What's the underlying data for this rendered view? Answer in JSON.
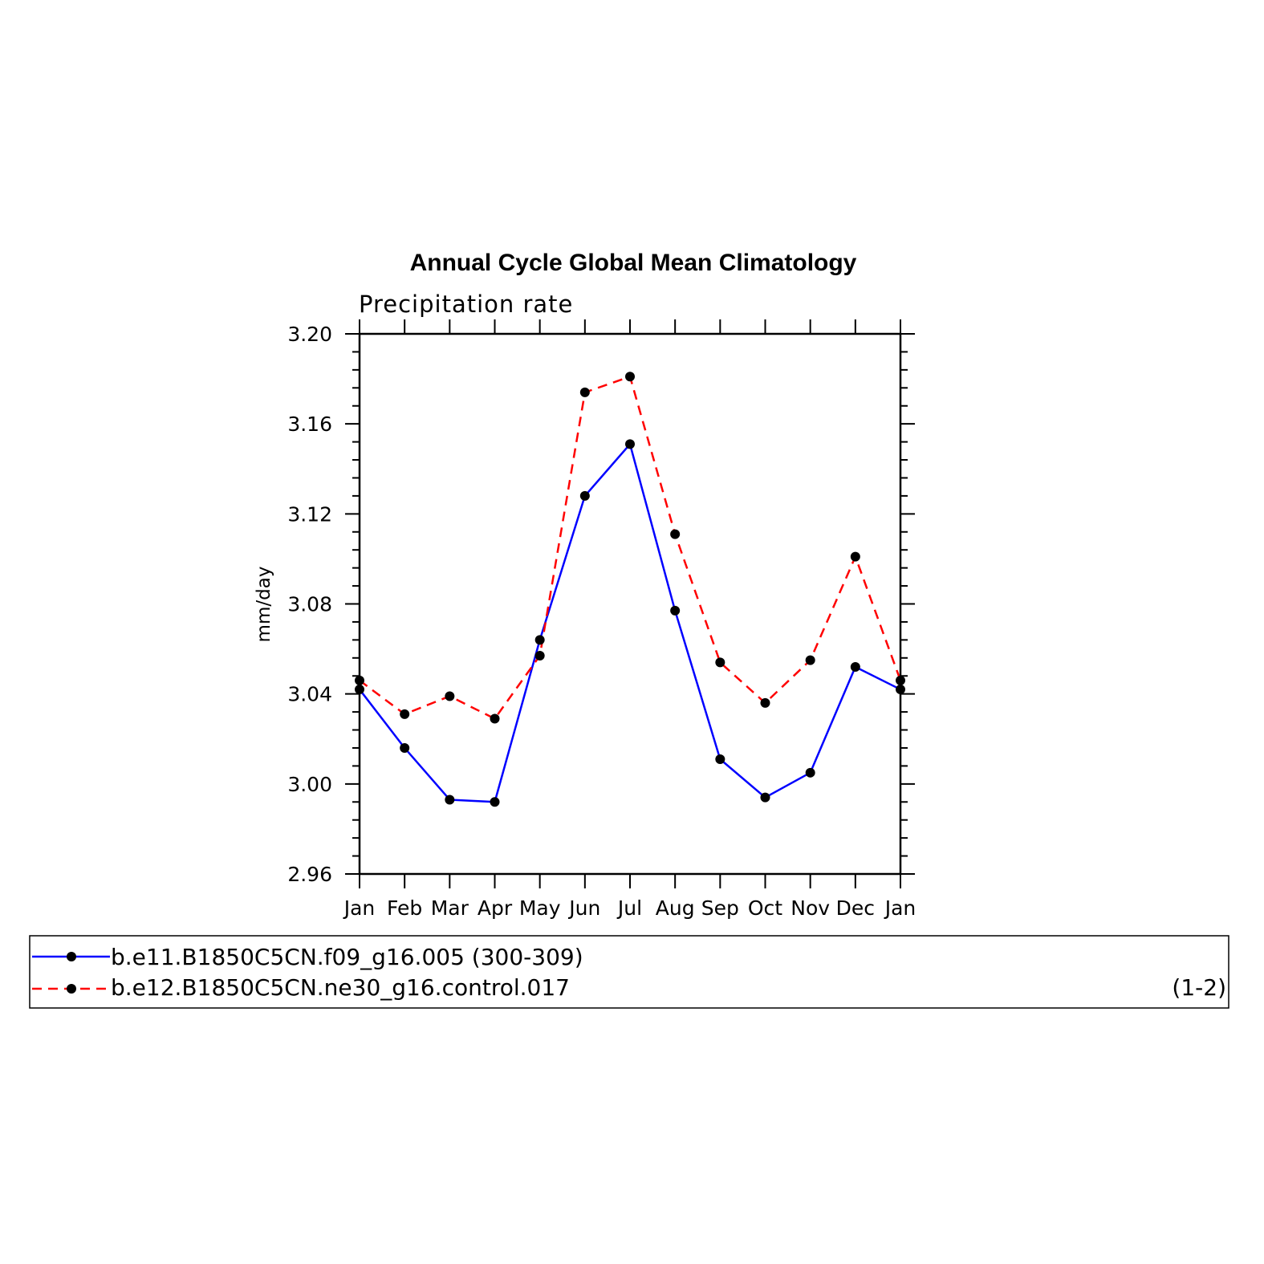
{
  "chart_data": {
    "type": "line",
    "title": "Annual Cycle Global Mean Climatology",
    "subtitle": "Precipitation rate",
    "xlabel": "",
    "ylabel": "mm/day",
    "categories": [
      "Jan",
      "Feb",
      "Mar",
      "Apr",
      "May",
      "Jun",
      "Jul",
      "Aug",
      "Sep",
      "Oct",
      "Nov",
      "Dec",
      "Jan"
    ],
    "ylim": [
      2.96,
      3.2
    ],
    "yticks": [
      "2.96",
      "3.00",
      "3.04",
      "3.08",
      "3.12",
      "3.16",
      "3.20"
    ],
    "grid": false,
    "series": [
      {
        "name": "b.e11.B1850C5CN.f09_g16.005 (300-309)",
        "color": "#0000ff",
        "dash": "solid",
        "marker": "filled-circle",
        "values": [
          3.042,
          3.016,
          2.993,
          2.992,
          3.064,
          3.128,
          3.151,
          3.077,
          3.011,
          2.994,
          3.005,
          3.052,
          3.042
        ]
      },
      {
        "name": "b.e12.B1850C5CN.ne30_g16.control.017",
        "color": "#ff0000",
        "dash": "dashed",
        "marker": "filled-circle",
        "values": [
          3.046,
          3.031,
          3.039,
          3.029,
          3.057,
          3.174,
          3.181,
          3.111,
          3.054,
          3.036,
          3.055,
          3.101,
          3.046
        ]
      }
    ],
    "legend_note": "(1-2)"
  }
}
